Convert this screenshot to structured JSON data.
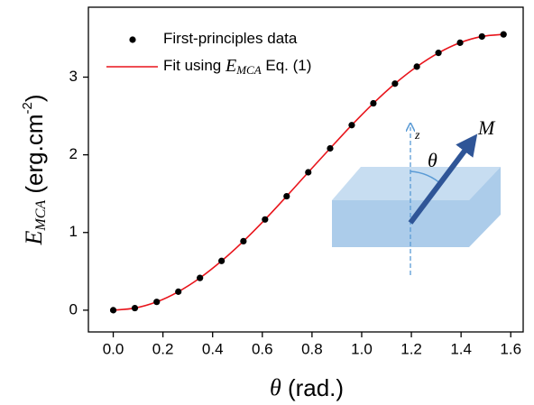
{
  "chart_data": {
    "type": "scatter",
    "xlabel": [
      "θ",
      " (rad.)"
    ],
    "ylabel": [
      "E",
      "MCA",
      " (erg.cm",
      "-2",
      ")"
    ],
    "xlim": [
      -0.1,
      1.65
    ],
    "ylim": [
      -0.28,
      3.9
    ],
    "xticks": [
      {
        "value": 0,
        "label": "0.0"
      },
      0.2,
      0.4,
      0.6,
      0.8,
      {
        "value": 1,
        "label": "1.0"
      },
      1.2,
      1.4,
      1.6
    ],
    "yticks": [
      0,
      1,
      2,
      3
    ],
    "legend": "upper left",
    "x": [
      0,
      0.087,
      0.175,
      0.262,
      0.349,
      0.436,
      0.524,
      0.611,
      0.698,
      0.785,
      0.873,
      0.96,
      1.047,
      1.134,
      1.222,
      1.309,
      1.396,
      1.484,
      1.571
    ],
    "series": [
      {
        "name": [
          "First-principles data"
        ],
        "color": "#000000",
        "mark": "marker",
        "values": [
          0,
          0.027,
          0.107,
          0.238,
          0.415,
          0.634,
          0.888,
          1.168,
          1.467,
          1.775,
          2.083,
          2.382,
          2.663,
          2.916,
          3.135,
          3.312,
          3.443,
          3.523,
          3.55
        ]
      },
      {
        "name": [
          "Fit using ",
          "E",
          "MCA",
          " Eq. (1)"
        ],
        "color": "#e8141b",
        "mark": "line",
        "values": [
          0,
          0.027,
          0.107,
          0.238,
          0.415,
          0.634,
          0.888,
          1.168,
          1.467,
          1.775,
          2.083,
          2.382,
          2.663,
          2.916,
          3.135,
          3.312,
          3.443,
          3.523,
          3.55
        ]
      }
    ],
    "annotations": [
      "z",
      "θ",
      "M"
    ]
  }
}
